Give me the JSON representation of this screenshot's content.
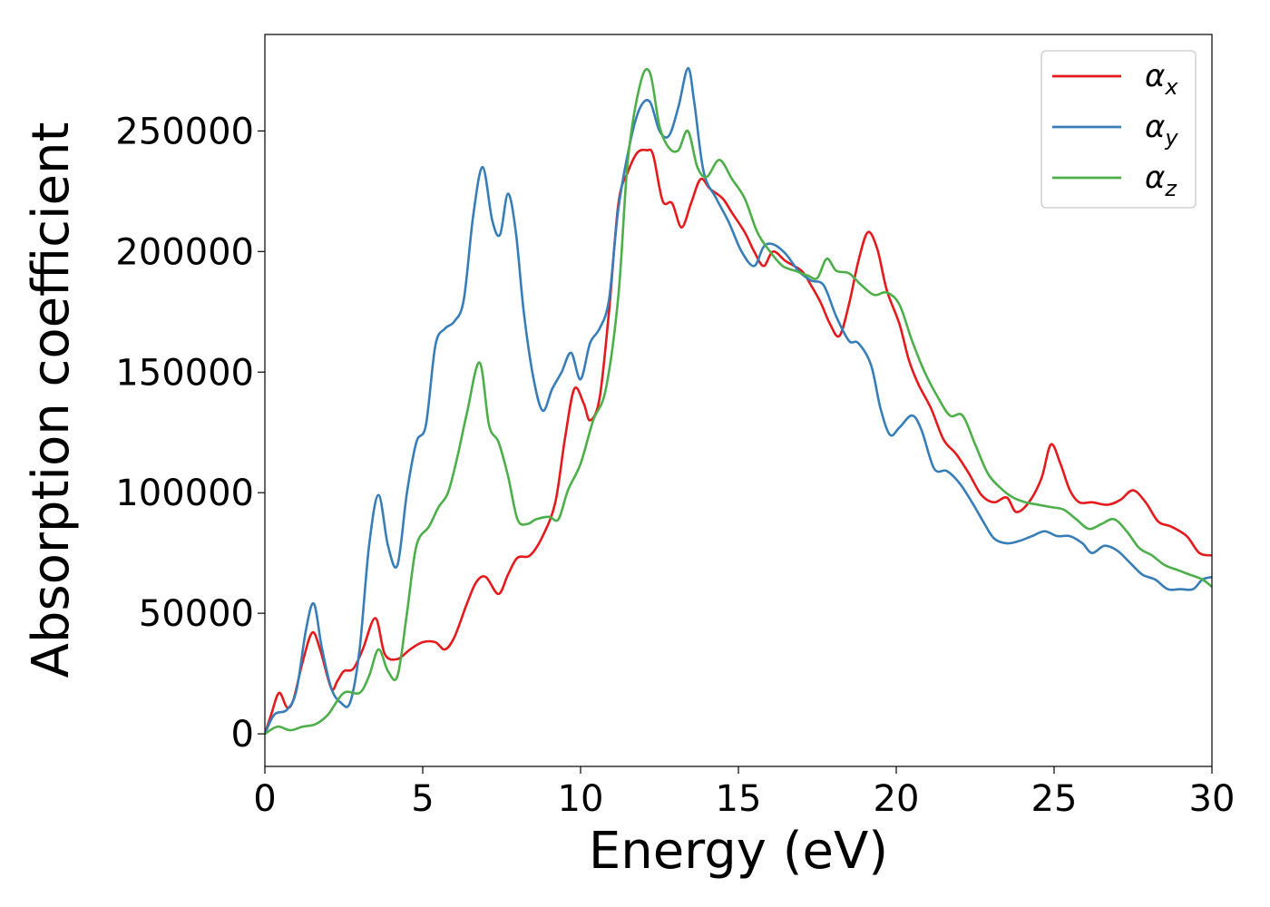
{
  "chart_data": {
    "type": "line",
    "xlabel": "Energy (eV)",
    "ylabel": "Absorption coefficient",
    "xlim": [
      0,
      30
    ],
    "ylim": [
      -13500,
      290000
    ],
    "xticks": [
      0,
      5,
      10,
      15,
      20,
      25,
      30
    ],
    "yticks": [
      0,
      50000,
      100000,
      150000,
      200000,
      250000
    ],
    "legend_position": "top-right",
    "grid": false,
    "series": [
      {
        "name": "αx",
        "symbol": "α",
        "subscript": "x",
        "color": "#e41a1c",
        "points": [
          [
            0,
            0
          ],
          [
            0.2,
            8000
          ],
          [
            0.45,
            17000
          ],
          [
            0.7,
            11000
          ],
          [
            0.9,
            14000
          ],
          [
            1.2,
            30000
          ],
          [
            1.5,
            42000
          ],
          [
            1.75,
            35000
          ],
          [
            2.1,
            19000
          ],
          [
            2.3,
            22000
          ],
          [
            2.5,
            26000
          ],
          [
            2.8,
            27000
          ],
          [
            3.1,
            35000
          ],
          [
            3.5,
            48000
          ],
          [
            3.8,
            33000
          ],
          [
            4.2,
            31000
          ],
          [
            4.6,
            35000
          ],
          [
            5.0,
            38000
          ],
          [
            5.4,
            38000
          ],
          [
            5.7,
            35000
          ],
          [
            6.0,
            40000
          ],
          [
            6.4,
            54000
          ],
          [
            6.7,
            63000
          ],
          [
            7.0,
            65000
          ],
          [
            7.4,
            58000
          ],
          [
            7.7,
            66000
          ],
          [
            8.0,
            73000
          ],
          [
            8.4,
            74000
          ],
          [
            8.8,
            82000
          ],
          [
            9.2,
            96000
          ],
          [
            9.5,
            122000
          ],
          [
            9.8,
            143000
          ],
          [
            10.1,
            137000
          ],
          [
            10.3,
            130000
          ],
          [
            10.6,
            139000
          ],
          [
            10.9,
            175000
          ],
          [
            11.2,
            220000
          ],
          [
            11.5,
            233000
          ],
          [
            11.8,
            241000
          ],
          [
            12.1,
            242000
          ],
          [
            12.3,
            240000
          ],
          [
            12.6,
            221000
          ],
          [
            12.9,
            220000
          ],
          [
            13.2,
            210000
          ],
          [
            13.5,
            220000
          ],
          [
            13.8,
            230000
          ],
          [
            14.1,
            226000
          ],
          [
            14.5,
            222000
          ],
          [
            14.8,
            216000
          ],
          [
            15.2,
            208000
          ],
          [
            15.5,
            200000
          ],
          [
            15.8,
            194000
          ],
          [
            16.1,
            200000
          ],
          [
            16.5,
            196000
          ],
          [
            17.0,
            192000
          ],
          [
            17.3,
            186000
          ],
          [
            17.6,
            179000
          ],
          [
            17.9,
            170000
          ],
          [
            18.2,
            165000
          ],
          [
            18.5,
            178000
          ],
          [
            18.8,
            196000
          ],
          [
            19.1,
            208000
          ],
          [
            19.4,
            201000
          ],
          [
            19.7,
            184000
          ],
          [
            20.1,
            170000
          ],
          [
            20.4,
            155000
          ],
          [
            20.7,
            145000
          ],
          [
            21.1,
            135000
          ],
          [
            21.5,
            122000
          ],
          [
            21.9,
            116000
          ],
          [
            22.3,
            108000
          ],
          [
            22.7,
            99000
          ],
          [
            23.1,
            96000
          ],
          [
            23.5,
            98000
          ],
          [
            23.8,
            92000
          ],
          [
            24.2,
            96000
          ],
          [
            24.6,
            106000
          ],
          [
            24.9,
            120000
          ],
          [
            25.2,
            112000
          ],
          [
            25.5,
            101000
          ],
          [
            25.8,
            96000
          ],
          [
            26.2,
            96000
          ],
          [
            26.7,
            95000
          ],
          [
            27.1,
            97000
          ],
          [
            27.5,
            101000
          ],
          [
            27.9,
            96000
          ],
          [
            28.3,
            88000
          ],
          [
            28.7,
            86000
          ],
          [
            29.2,
            82000
          ],
          [
            29.6,
            75000
          ],
          [
            30.0,
            74000
          ]
        ]
      },
      {
        "name": "αy",
        "symbol": "α",
        "subscript": "y",
        "color": "#377eb8",
        "points": [
          [
            0,
            0
          ],
          [
            0.3,
            8000
          ],
          [
            0.7,
            10000
          ],
          [
            1.0,
            18000
          ],
          [
            1.3,
            43000
          ],
          [
            1.55,
            54000
          ],
          [
            1.8,
            36000
          ],
          [
            2.1,
            19000
          ],
          [
            2.4,
            13000
          ],
          [
            2.7,
            13000
          ],
          [
            3.0,
            35000
          ],
          [
            3.3,
            78000
          ],
          [
            3.6,
            99000
          ],
          [
            3.9,
            78000
          ],
          [
            4.2,
            70000
          ],
          [
            4.5,
            100000
          ],
          [
            4.8,
            121000
          ],
          [
            5.1,
            128000
          ],
          [
            5.4,
            161000
          ],
          [
            5.7,
            168000
          ],
          [
            6.0,
            171000
          ],
          [
            6.3,
            180000
          ],
          [
            6.6,
            215000
          ],
          [
            6.9,
            235000
          ],
          [
            7.2,
            213000
          ],
          [
            7.45,
            207000
          ],
          [
            7.7,
            224000
          ],
          [
            7.95,
            208000
          ],
          [
            8.2,
            175000
          ],
          [
            8.5,
            148000
          ],
          [
            8.8,
            134000
          ],
          [
            9.1,
            143000
          ],
          [
            9.4,
            150000
          ],
          [
            9.7,
            158000
          ],
          [
            10.0,
            147000
          ],
          [
            10.3,
            162000
          ],
          [
            10.6,
            168000
          ],
          [
            10.9,
            180000
          ],
          [
            11.2,
            218000
          ],
          [
            11.6,
            247000
          ],
          [
            11.9,
            260000
          ],
          [
            12.2,
            262000
          ],
          [
            12.5,
            250000
          ],
          [
            12.8,
            248000
          ],
          [
            13.1,
            260000
          ],
          [
            13.4,
            276000
          ],
          [
            13.6,
            262000
          ],
          [
            13.9,
            233000
          ],
          [
            14.3,
            222000
          ],
          [
            14.7,
            212000
          ],
          [
            15.1,
            200000
          ],
          [
            15.5,
            194000
          ],
          [
            15.8,
            202000
          ],
          [
            16.1,
            203000
          ],
          [
            16.5,
            199000
          ],
          [
            16.9,
            192000
          ],
          [
            17.3,
            188000
          ],
          [
            17.7,
            186000
          ],
          [
            18.1,
            173000
          ],
          [
            18.5,
            163000
          ],
          [
            18.8,
            162000
          ],
          [
            19.2,
            153000
          ],
          [
            19.5,
            135000
          ],
          [
            19.8,
            124000
          ],
          [
            20.1,
            127000
          ],
          [
            20.5,
            132000
          ],
          [
            20.8,
            126000
          ],
          [
            21.2,
            110000
          ],
          [
            21.6,
            109000
          ],
          [
            22.0,
            104000
          ],
          [
            22.4,
            96000
          ],
          [
            22.8,
            87000
          ],
          [
            23.1,
            81000
          ],
          [
            23.5,
            79000
          ],
          [
            23.9,
            80000
          ],
          [
            24.3,
            82000
          ],
          [
            24.7,
            84000
          ],
          [
            25.1,
            82000
          ],
          [
            25.5,
            82000
          ],
          [
            25.9,
            79000
          ],
          [
            26.2,
            75000
          ],
          [
            26.6,
            78000
          ],
          [
            27.0,
            76000
          ],
          [
            27.4,
            71000
          ],
          [
            27.8,
            66000
          ],
          [
            28.2,
            64000
          ],
          [
            28.6,
            60000
          ],
          [
            29.0,
            60000
          ],
          [
            29.4,
            60000
          ],
          [
            29.7,
            64000
          ],
          [
            30.0,
            65000
          ]
        ]
      },
      {
        "name": "αz",
        "symbol": "α",
        "subscript": "z",
        "color": "#4daf4a",
        "points": [
          [
            0,
            0
          ],
          [
            0.4,
            3000
          ],
          [
            0.8,
            1500
          ],
          [
            1.2,
            3000
          ],
          [
            1.6,
            4000
          ],
          [
            2.0,
            8000
          ],
          [
            2.5,
            17000
          ],
          [
            3.0,
            17000
          ],
          [
            3.3,
            24000
          ],
          [
            3.6,
            35000
          ],
          [
            3.9,
            26000
          ],
          [
            4.2,
            24000
          ],
          [
            4.5,
            50000
          ],
          [
            4.8,
            78000
          ],
          [
            5.2,
            86000
          ],
          [
            5.5,
            94000
          ],
          [
            5.8,
            100000
          ],
          [
            6.1,
            115000
          ],
          [
            6.4,
            133000
          ],
          [
            6.8,
            154000
          ],
          [
            7.1,
            128000
          ],
          [
            7.4,
            121000
          ],
          [
            7.7,
            107000
          ],
          [
            8.0,
            89000
          ],
          [
            8.3,
            87000
          ],
          [
            8.6,
            89000
          ],
          [
            9.0,
            90000
          ],
          [
            9.3,
            89000
          ],
          [
            9.6,
            101000
          ],
          [
            10.0,
            112000
          ],
          [
            10.4,
            130000
          ],
          [
            10.8,
            143000
          ],
          [
            11.2,
            182000
          ],
          [
            11.5,
            238000
          ],
          [
            11.9,
            270000
          ],
          [
            12.2,
            274000
          ],
          [
            12.5,
            252000
          ],
          [
            12.8,
            243000
          ],
          [
            13.1,
            242000
          ],
          [
            13.4,
            250000
          ],
          [
            13.7,
            235000
          ],
          [
            14.0,
            231000
          ],
          [
            14.4,
            238000
          ],
          [
            14.8,
            230000
          ],
          [
            15.2,
            222000
          ],
          [
            15.6,
            208000
          ],
          [
            16.0,
            200000
          ],
          [
            16.4,
            194000
          ],
          [
            16.8,
            192000
          ],
          [
            17.2,
            190000
          ],
          [
            17.5,
            189000
          ],
          [
            17.8,
            197000
          ],
          [
            18.1,
            192000
          ],
          [
            18.5,
            191000
          ],
          [
            18.9,
            186000
          ],
          [
            19.3,
            182000
          ],
          [
            19.7,
            183000
          ],
          [
            20.1,
            178000
          ],
          [
            20.5,
            163000
          ],
          [
            20.9,
            150000
          ],
          [
            21.3,
            140000
          ],
          [
            21.7,
            132000
          ],
          [
            22.1,
            132000
          ],
          [
            22.5,
            120000
          ],
          [
            22.9,
            108000
          ],
          [
            23.3,
            102000
          ],
          [
            23.7,
            98000
          ],
          [
            24.1,
            96000
          ],
          [
            24.5,
            95000
          ],
          [
            24.9,
            94000
          ],
          [
            25.3,
            93000
          ],
          [
            25.7,
            89000
          ],
          [
            26.1,
            85000
          ],
          [
            26.5,
            87000
          ],
          [
            26.9,
            89000
          ],
          [
            27.3,
            84000
          ],
          [
            27.7,
            77000
          ],
          [
            28.1,
            74000
          ],
          [
            28.5,
            70000
          ],
          [
            28.9,
            68000
          ],
          [
            29.3,
            66000
          ],
          [
            29.7,
            64000
          ],
          [
            30.0,
            61000
          ]
        ]
      }
    ]
  }
}
